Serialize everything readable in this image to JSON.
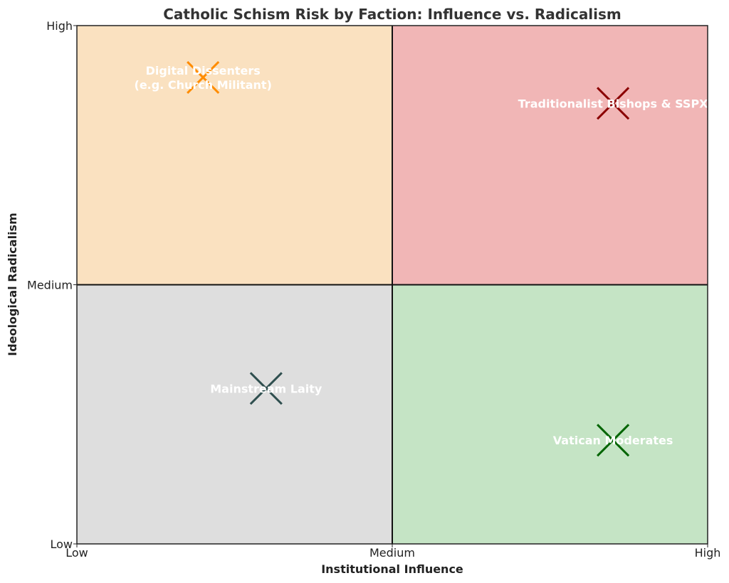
{
  "chart_data": {
    "type": "scatter",
    "title": "Catholic Schism Risk by Faction: Influence vs. Radicalism",
    "xlabel": "Institutional Influence",
    "ylabel": "Ideological Radicalism",
    "xlim": [
      0,
      2
    ],
    "ylim": [
      0,
      2
    ],
    "x_ticks": [
      {
        "value": 0,
        "label": "Low"
      },
      {
        "value": 1,
        "label": "Medium"
      },
      {
        "value": 2,
        "label": "High"
      }
    ],
    "y_ticks": [
      {
        "value": 0,
        "label": "Low"
      },
      {
        "value": 1,
        "label": "Medium"
      },
      {
        "value": 2,
        "label": "High"
      }
    ],
    "grid": false,
    "quadrants": [
      {
        "x": [
          0,
          1
        ],
        "y": [
          1,
          2
        ],
        "color": "#fae1c0"
      },
      {
        "x": [
          1,
          2
        ],
        "y": [
          1,
          2
        ],
        "color": "#f1b6b6"
      },
      {
        "x": [
          0,
          1
        ],
        "y": [
          0,
          1
        ],
        "color": "#dedede"
      },
      {
        "x": [
          1,
          2
        ],
        "y": [
          0,
          1
        ],
        "color": "#c5e4c5"
      }
    ],
    "points": [
      {
        "label": "Digital Dissenters\n(e.g. Church Militant)",
        "x": 0.4,
        "y": 1.8,
        "color": "#ff8c00"
      },
      {
        "label": "Traditionalist Bishops & SSPX",
        "x": 1.7,
        "y": 1.7,
        "color": "#8b0000"
      },
      {
        "label": "Mainstream Laity",
        "x": 0.6,
        "y": 0.6,
        "color": "#2f4f4f"
      },
      {
        "label": "Vatican Moderates",
        "x": 1.7,
        "y": 0.4,
        "color": "#006400"
      }
    ]
  }
}
